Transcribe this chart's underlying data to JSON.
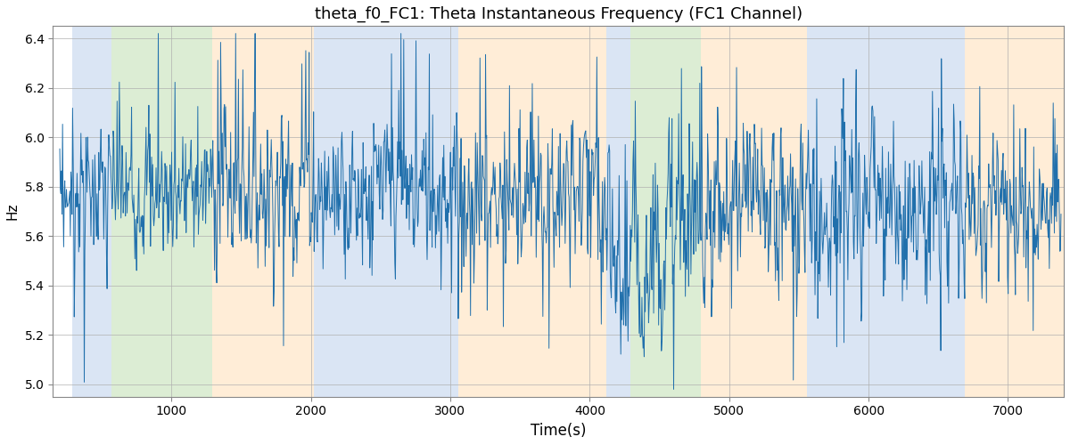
{
  "title": "theta_f0_FC1: Theta Instantaneous Frequency (FC1 Channel)",
  "xlabel": "Time(s)",
  "ylabel": "Hz",
  "ylim": [
    4.95,
    6.45
  ],
  "xlim": [
    150,
    7400
  ],
  "line_color": "#2170ac",
  "line_width": 0.7,
  "background_color": "#ffffff",
  "grid_color": "#b0b0b0",
  "yticks": [
    5.0,
    5.2,
    5.4,
    5.6,
    5.8,
    6.0,
    6.2,
    6.4
  ],
  "xticks": [
    1000,
    2000,
    3000,
    4000,
    5000,
    6000,
    7000
  ],
  "colored_bands": [
    {
      "xmin": 290,
      "xmax": 570,
      "color": "#aec6e8",
      "alpha": 0.45
    },
    {
      "xmin": 570,
      "xmax": 1290,
      "color": "#b2d9a0",
      "alpha": 0.45
    },
    {
      "xmin": 1290,
      "xmax": 2020,
      "color": "#ffd9a8",
      "alpha": 0.45
    },
    {
      "xmin": 2020,
      "xmax": 3060,
      "color": "#aec6e8",
      "alpha": 0.45
    },
    {
      "xmin": 3060,
      "xmax": 4120,
      "color": "#ffd9a8",
      "alpha": 0.45
    },
    {
      "xmin": 4120,
      "xmax": 4290,
      "color": "#aec6e8",
      "alpha": 0.45
    },
    {
      "xmin": 4290,
      "xmax": 4800,
      "color": "#b2d9a0",
      "alpha": 0.45
    },
    {
      "xmin": 4800,
      "xmax": 5560,
      "color": "#ffd9a8",
      "alpha": 0.45
    },
    {
      "xmin": 5560,
      "xmax": 6690,
      "color": "#aec6e8",
      "alpha": 0.45
    },
    {
      "xmin": 6690,
      "xmax": 7400,
      "color": "#ffd9a8",
      "alpha": 0.45
    }
  ],
  "title_fontsize": 13,
  "xlabel_fontsize": 12,
  "ylabel_fontsize": 11
}
